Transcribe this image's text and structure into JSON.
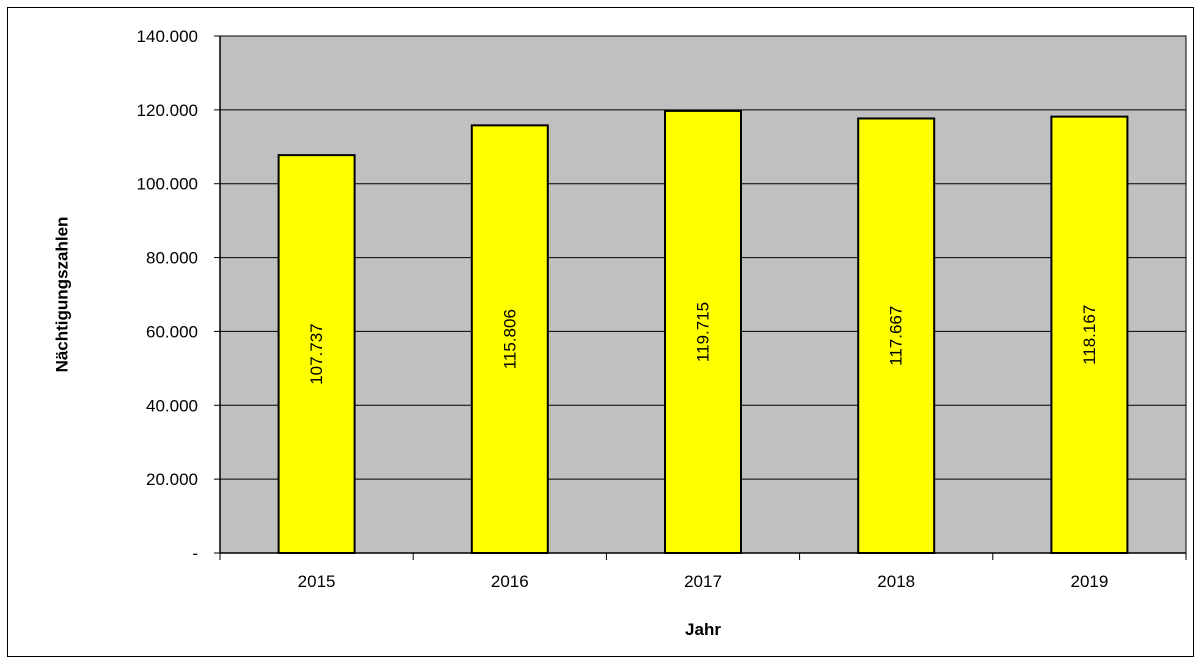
{
  "chart_data": {
    "type": "bar",
    "categories": [
      "2015",
      "2016",
      "2017",
      "2018",
      "2019"
    ],
    "values": [
      107737,
      115806,
      119715,
      117667,
      118167
    ],
    "data_labels": [
      "107.737",
      "115.806",
      "119.715",
      "117.667",
      "118.167"
    ],
    "title": "",
    "xlabel": "Jahr",
    "ylabel": "Nächtigungszahlen",
    "ylim": [
      0,
      140000
    ],
    "yticks": [
      0,
      20000,
      40000,
      60000,
      80000,
      100000,
      120000,
      140000
    ],
    "ytick_labels": [
      "-",
      "20.000",
      "40.000",
      "60.000",
      "80.000",
      "100.000",
      "120.000",
      "140.000"
    ],
    "grid": true,
    "legend": "none",
    "colors": {
      "bar_fill": "#ffff00",
      "bar_stroke": "#000000",
      "plot_background": "#c0c0c0",
      "gridline": "#000000"
    }
  }
}
